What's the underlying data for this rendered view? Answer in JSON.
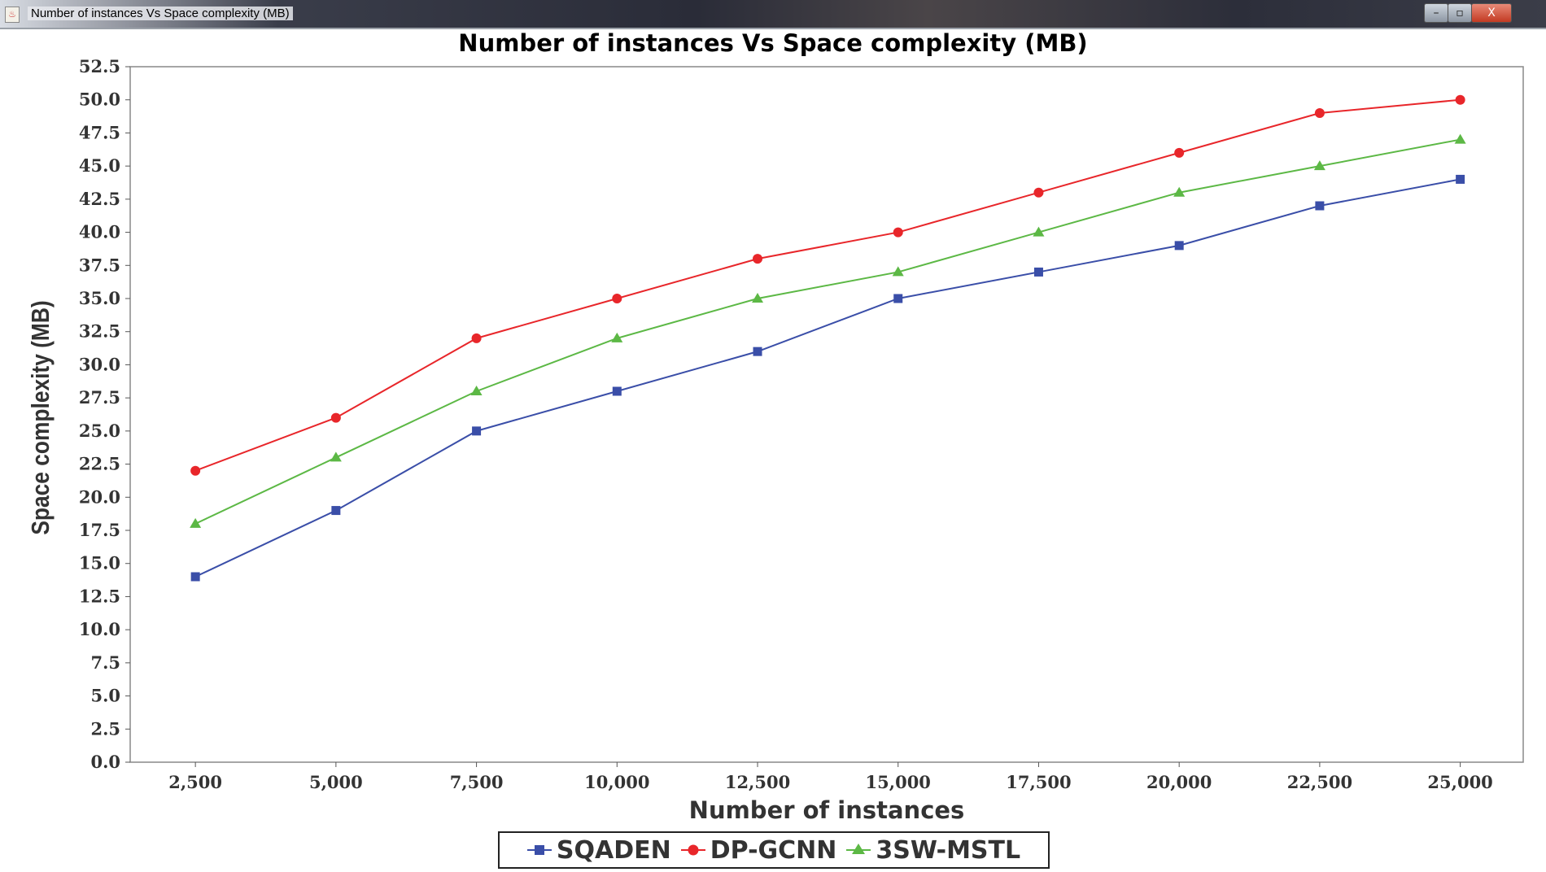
{
  "window": {
    "title": "Number of instances Vs Space complexity (MB)",
    "minimize": "–",
    "maximize": "▫",
    "close": "X"
  },
  "chart_data": {
    "type": "line",
    "title": "Number of instances Vs Space complexity (MB)",
    "xlabel": "Number of instances",
    "ylabel": "Space complexity (MB)",
    "x": [
      2500,
      5000,
      7500,
      10000,
      12500,
      15000,
      17500,
      20000,
      22500,
      25000
    ],
    "x_tick_labels": [
      "2,500",
      "5,000",
      "7,500",
      "10,000",
      "12,500",
      "15,000",
      "17,500",
      "20,000",
      "22,500",
      "25,000"
    ],
    "xlim": [
      1340,
      26120
    ],
    "ylim": [
      0,
      52.5
    ],
    "y_ticks": [
      "0.0",
      "2.5",
      "5.0",
      "7.5",
      "10.0",
      "12.5",
      "15.0",
      "17.5",
      "20.0",
      "22.5",
      "25.0",
      "27.5",
      "30.0",
      "32.5",
      "35.0",
      "37.5",
      "40.0",
      "42.5",
      "45.0",
      "47.5",
      "50.0",
      "52.5"
    ],
    "grid": false,
    "legend_position": "bottom",
    "series": [
      {
        "name": "SQADEN",
        "color": "#3a4ea8",
        "marker": "square",
        "values": [
          14,
          19,
          25,
          28,
          31,
          35,
          37,
          39,
          42,
          44
        ]
      },
      {
        "name": "DP-GCNN",
        "color": "#e8262a",
        "marker": "circle",
        "values": [
          22,
          26,
          32,
          35,
          38,
          40,
          43,
          46,
          49,
          50
        ]
      },
      {
        "name": "3SW-MSTL",
        "color": "#5cb845",
        "marker": "triangle",
        "values": [
          18,
          23,
          28,
          32,
          35,
          37,
          40,
          43,
          45,
          47
        ]
      }
    ]
  }
}
